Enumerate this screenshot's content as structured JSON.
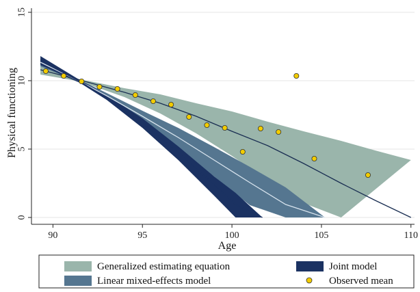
{
  "chart_data": {
    "type": "line",
    "xlabel": "Age",
    "ylabel": "Physical functioning",
    "xlim": [
      88.8,
      110.2
    ],
    "ylim": [
      -0.5,
      15.3
    ],
    "xticks": [
      90,
      95,
      100,
      105,
      110
    ],
    "yticks": [
      0,
      5,
      10,
      15
    ],
    "grid": "horizontal",
    "legend_position": "bottom",
    "series": [
      {
        "name": "Generalized estimating equation",
        "color": "#9ab5ab",
        "line_color": "#1a2e52",
        "x": [
          89.3,
          91.5,
          94,
          96,
          98,
          100,
          102,
          104,
          106.1,
          108,
          110
        ],
        "mid": [
          10.8,
          10.05,
          9.15,
          8.35,
          7.4,
          6.3,
          5.25,
          3.95,
          2.5,
          1.25,
          0
        ],
        "lower": [
          10.45,
          9.95,
          8.8,
          7.6,
          6.15,
          4.5,
          2.7,
          1.05,
          0,
          null,
          null
        ],
        "upper": [
          11.05,
          10.1,
          9.45,
          9.0,
          8.35,
          7.75,
          7.0,
          6.3,
          5.6,
          4.9,
          4.2
        ]
      },
      {
        "name": "Linear mixed-effects model",
        "color": "#557690",
        "line_color": "#d8e4ee",
        "x": [
          89.3,
          91.5,
          93,
          95,
          97,
          99,
          101,
          103,
          105.2
        ],
        "mid": [
          11.35,
          9.95,
          8.9,
          7.4,
          5.85,
          4.2,
          2.55,
          0.95,
          0
        ],
        "lower": [
          11.05,
          9.85,
          8.65,
          6.9,
          5.0,
          3.0,
          0.9,
          0,
          null
        ],
        "upper": [
          11.6,
          10.05,
          9.1,
          7.8,
          6.55,
          5.15,
          3.7,
          2.2,
          0
        ]
      },
      {
        "name": "Joint model",
        "color": "#1b3262",
        "line_color": "#1b3262",
        "x": [
          89.3,
          91.5,
          93,
          95,
          97,
          99,
          100.2,
          101.7
        ],
        "mid": [
          11.45,
          9.95,
          8.75,
          6.9,
          4.75,
          2.4,
          0.95,
          0
        ],
        "lower": [
          11.15,
          9.85,
          8.6,
          6.55,
          4.2,
          1.6,
          0,
          null
        ],
        "upper": [
          11.8,
          10.05,
          8.95,
          7.25,
          5.2,
          3.0,
          1.8,
          0
        ]
      },
      {
        "name": "Observed mean",
        "type": "scatter",
        "color": "#f2cc00",
        "x": [
          89.6,
          90.6,
          91.6,
          92.6,
          93.6,
          94.6,
          95.6,
          96.6,
          97.6,
          98.6,
          99.6,
          100.6,
          101.6,
          102.6,
          103.6,
          104.6,
          107.6
        ],
        "y": [
          10.7,
          10.35,
          9.95,
          9.55,
          9.4,
          8.95,
          8.5,
          8.25,
          7.35,
          6.75,
          6.55,
          4.8,
          6.5,
          6.25,
          10.35,
          4.3,
          3.1
        ]
      }
    ]
  },
  "legend": {
    "gee": "Generalized estimating equation",
    "lmm": "Linear mixed-effects model",
    "joint": "Joint model",
    "observed": "Observed mean"
  }
}
